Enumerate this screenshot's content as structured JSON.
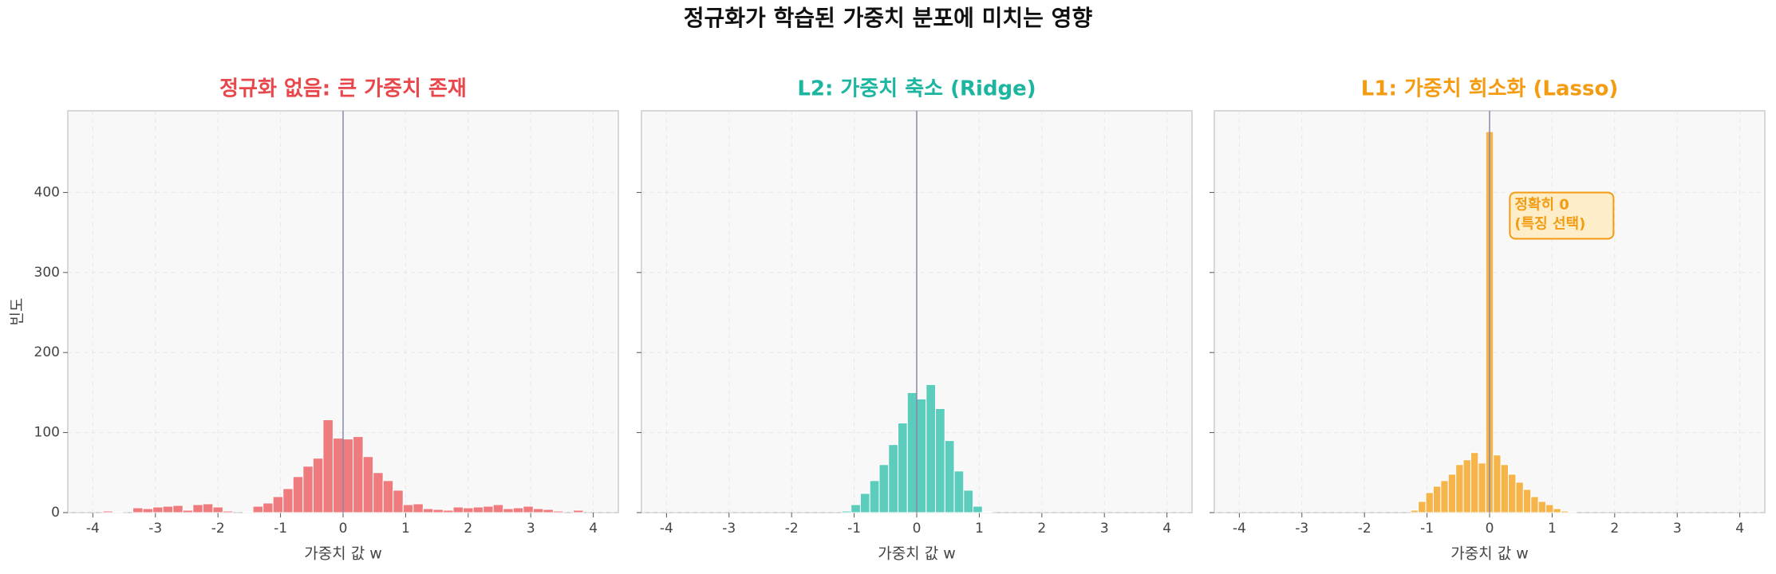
{
  "title": "정규화가 학습된 가중치 분포에 미치는 영향",
  "chart_data": [
    {
      "type": "histogram",
      "title": "정규화 없음: 큰 가중치 존재",
      "color": "#e8474c",
      "bar_color": "#f07b7e",
      "bins": [
        -4,
        -3.84,
        -3.68,
        -3.52,
        -3.36,
        -3.2,
        -3.04,
        -2.88,
        -2.72,
        -2.56,
        -2.4,
        -2.24,
        -2.08,
        -1.92,
        -1.76,
        -1.6,
        -1.44,
        -1.28,
        -1.12,
        -0.96,
        -0.8,
        -0.64,
        -0.48,
        -0.32,
        -0.16,
        0,
        0.16,
        0.32,
        0.48,
        0.64,
        0.8,
        0.96,
        1.12,
        1.28,
        1.44,
        1.6,
        1.76,
        1.92,
        2.08,
        2.24,
        2.4,
        2.56,
        2.72,
        2.88,
        3.04,
        3.2,
        3.36,
        3.52,
        3.68,
        3.84,
        4
      ],
      "values": [
        0,
        2,
        1,
        0,
        6,
        5,
        7,
        8,
        9,
        3,
        10,
        11,
        7,
        2,
        0,
        1,
        8,
        12,
        20,
        30,
        45,
        58,
        68,
        116,
        93,
        92,
        95,
        70,
        50,
        40,
        28,
        10,
        11,
        5,
        4,
        3,
        7,
        6,
        7,
        8,
        10,
        5,
        6,
        8,
        5,
        4,
        2,
        0,
        3,
        0
      ],
      "xlim": [
        -4.4,
        4.4
      ],
      "xticks": [
        -4,
        -3,
        -2,
        -1,
        0,
        1,
        2,
        3,
        4
      ],
      "ylim": [
        0,
        502
      ],
      "yticks": [
        0,
        100,
        200,
        300,
        400
      ],
      "xlabel": "가중치 값 w",
      "ylabel": "빈도",
      "vline": 0,
      "grid": true
    },
    {
      "type": "histogram",
      "title": "L2: 가중치 축소 (Ridge)",
      "color": "#1bb5a0",
      "bar_color": "#5ccdbd",
      "bins": [
        -1.2,
        -1.05,
        -0.9,
        -0.75,
        -0.6,
        -0.45,
        -0.3,
        -0.15,
        0,
        0.15,
        0.3,
        0.45,
        0.6,
        0.75,
        0.9,
        1.05,
        1.2
      ],
      "values": [
        2,
        10,
        24,
        40,
        60,
        85,
        112,
        150,
        142,
        160,
        130,
        90,
        52,
        28,
        8,
        1
      ],
      "xlim": [
        -4.4,
        4.4
      ],
      "xticks": [
        -4,
        -3,
        -2,
        -1,
        0,
        1,
        2,
        3,
        4
      ],
      "ylim": [
        0,
        502
      ],
      "yticks": [
        0,
        100,
        200,
        300,
        400
      ],
      "xlabel": "가중치 값 w",
      "vline": 0,
      "grid": true
    },
    {
      "type": "histogram",
      "title": "L1: 가중치 희소화 (Lasso)",
      "color": "#f39c12",
      "bar_color": "#f5b54a",
      "bins": [
        -1.26,
        -1.14,
        -1.02,
        -0.9,
        -0.78,
        -0.66,
        -0.54,
        -0.42,
        -0.3,
        -0.18,
        -0.06,
        0.06,
        0.18,
        0.3,
        0.42,
        0.54,
        0.66,
        0.78,
        0.9,
        1.02,
        1.14,
        1.26,
        1.38,
        1.5
      ],
      "values": [
        3,
        14,
        25,
        33,
        40,
        48,
        60,
        66,
        75,
        62,
        476,
        72,
        60,
        48,
        38,
        29,
        20,
        14,
        10,
        5,
        2,
        1,
        0
      ],
      "xlim": [
        -4.4,
        4.4
      ],
      "xticks": [
        -4,
        -3,
        -2,
        -1,
        0,
        1,
        2,
        3,
        4
      ],
      "ylim": [
        0,
        502
      ],
      "yticks": [
        0,
        100,
        200,
        300,
        400
      ],
      "xlabel": "가중치 값 w",
      "vline": 0,
      "grid": true,
      "annotation": [
        "정확히 0",
        "(특징 선택)"
      ]
    }
  ]
}
